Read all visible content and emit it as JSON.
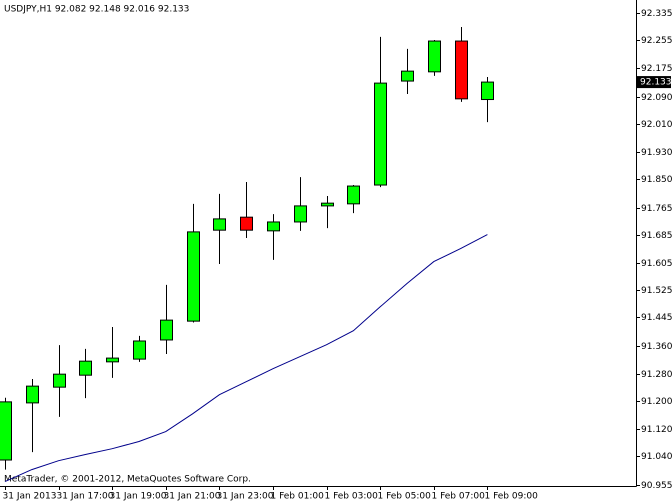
{
  "chart_data": {
    "type": "candlestick",
    "title": "USDJPY,H1  92.082 92.148 92.016 92.133",
    "footer": "MetaTrader, © 2001-2012, MetaQuotes Software Corp.",
    "categories": [
      "31 Jan 2013",
      null,
      "31 Jan 17:00",
      null,
      "31 Jan 19:00",
      null,
      "31 Jan 21:00",
      null,
      "31 Jan 23:00",
      null,
      "1 Feb 01:00",
      null,
      "1 Feb 03:00",
      null,
      "1 Feb 05:00",
      null,
      "1 Feb 07:00",
      null,
      "1 Feb 09:00"
    ],
    "open": [
      91.028,
      91.195,
      91.241,
      91.276,
      91.315,
      91.323,
      91.379,
      91.434,
      91.7,
      91.738,
      91.698,
      91.724,
      91.771,
      91.777,
      91.832,
      92.136,
      92.163,
      92.253,
      92.082
    ],
    "high": [
      91.21,
      91.265,
      91.364,
      91.353,
      91.417,
      91.391,
      91.54,
      91.777,
      91.806,
      91.841,
      91.747,
      91.855,
      91.8,
      91.832,
      92.265,
      92.23,
      92.256,
      92.294,
      92.148
    ],
    "low": [
      91.0,
      91.051,
      91.154,
      91.209,
      91.268,
      91.315,
      91.338,
      91.43,
      91.601,
      91.677,
      91.613,
      91.698,
      91.706,
      91.75,
      91.826,
      92.098,
      92.151,
      92.075,
      92.016
    ],
    "close": [
      91.198,
      91.244,
      91.279,
      91.317,
      91.326,
      91.376,
      91.437,
      91.695,
      91.733,
      91.7,
      91.724,
      91.771,
      91.779,
      91.829,
      92.13,
      92.165,
      92.253,
      92.084,
      92.133
    ],
    "up_color": "#00ff00",
    "down_color": "#ff0000",
    "ma": {
      "color": "#00008b",
      "values": [
        90.965,
        91.0,
        91.026,
        91.044,
        91.061,
        91.082,
        91.111,
        91.163,
        91.219,
        91.257,
        91.295,
        91.33,
        91.365,
        91.406,
        91.476,
        91.544,
        91.608,
        91.646,
        91.687
      ]
    },
    "last_price": 92.133,
    "ylim": [
      90.952,
      92.373
    ],
    "yticks": [
      92.335,
      92.255,
      92.175,
      {
        "value": 92.09,
        "label": "92.090"
      },
      {
        "value": 92.01,
        "label": "92.010"
      },
      {
        "value": 91.93,
        "label": "91.930"
      },
      {
        "value": 91.85,
        "label": "91.850"
      },
      91.765,
      91.685,
      91.605,
      91.525,
      91.445,
      {
        "value": 91.36,
        "label": "91.360"
      },
      {
        "value": 91.28,
        "label": "91.280"
      },
      {
        "value": 91.2,
        "label": "91.200"
      },
      {
        "value": 91.12,
        "label": "91.120"
      },
      {
        "value": 91.04,
        "label": "91.040"
      },
      90.955
    ]
  }
}
